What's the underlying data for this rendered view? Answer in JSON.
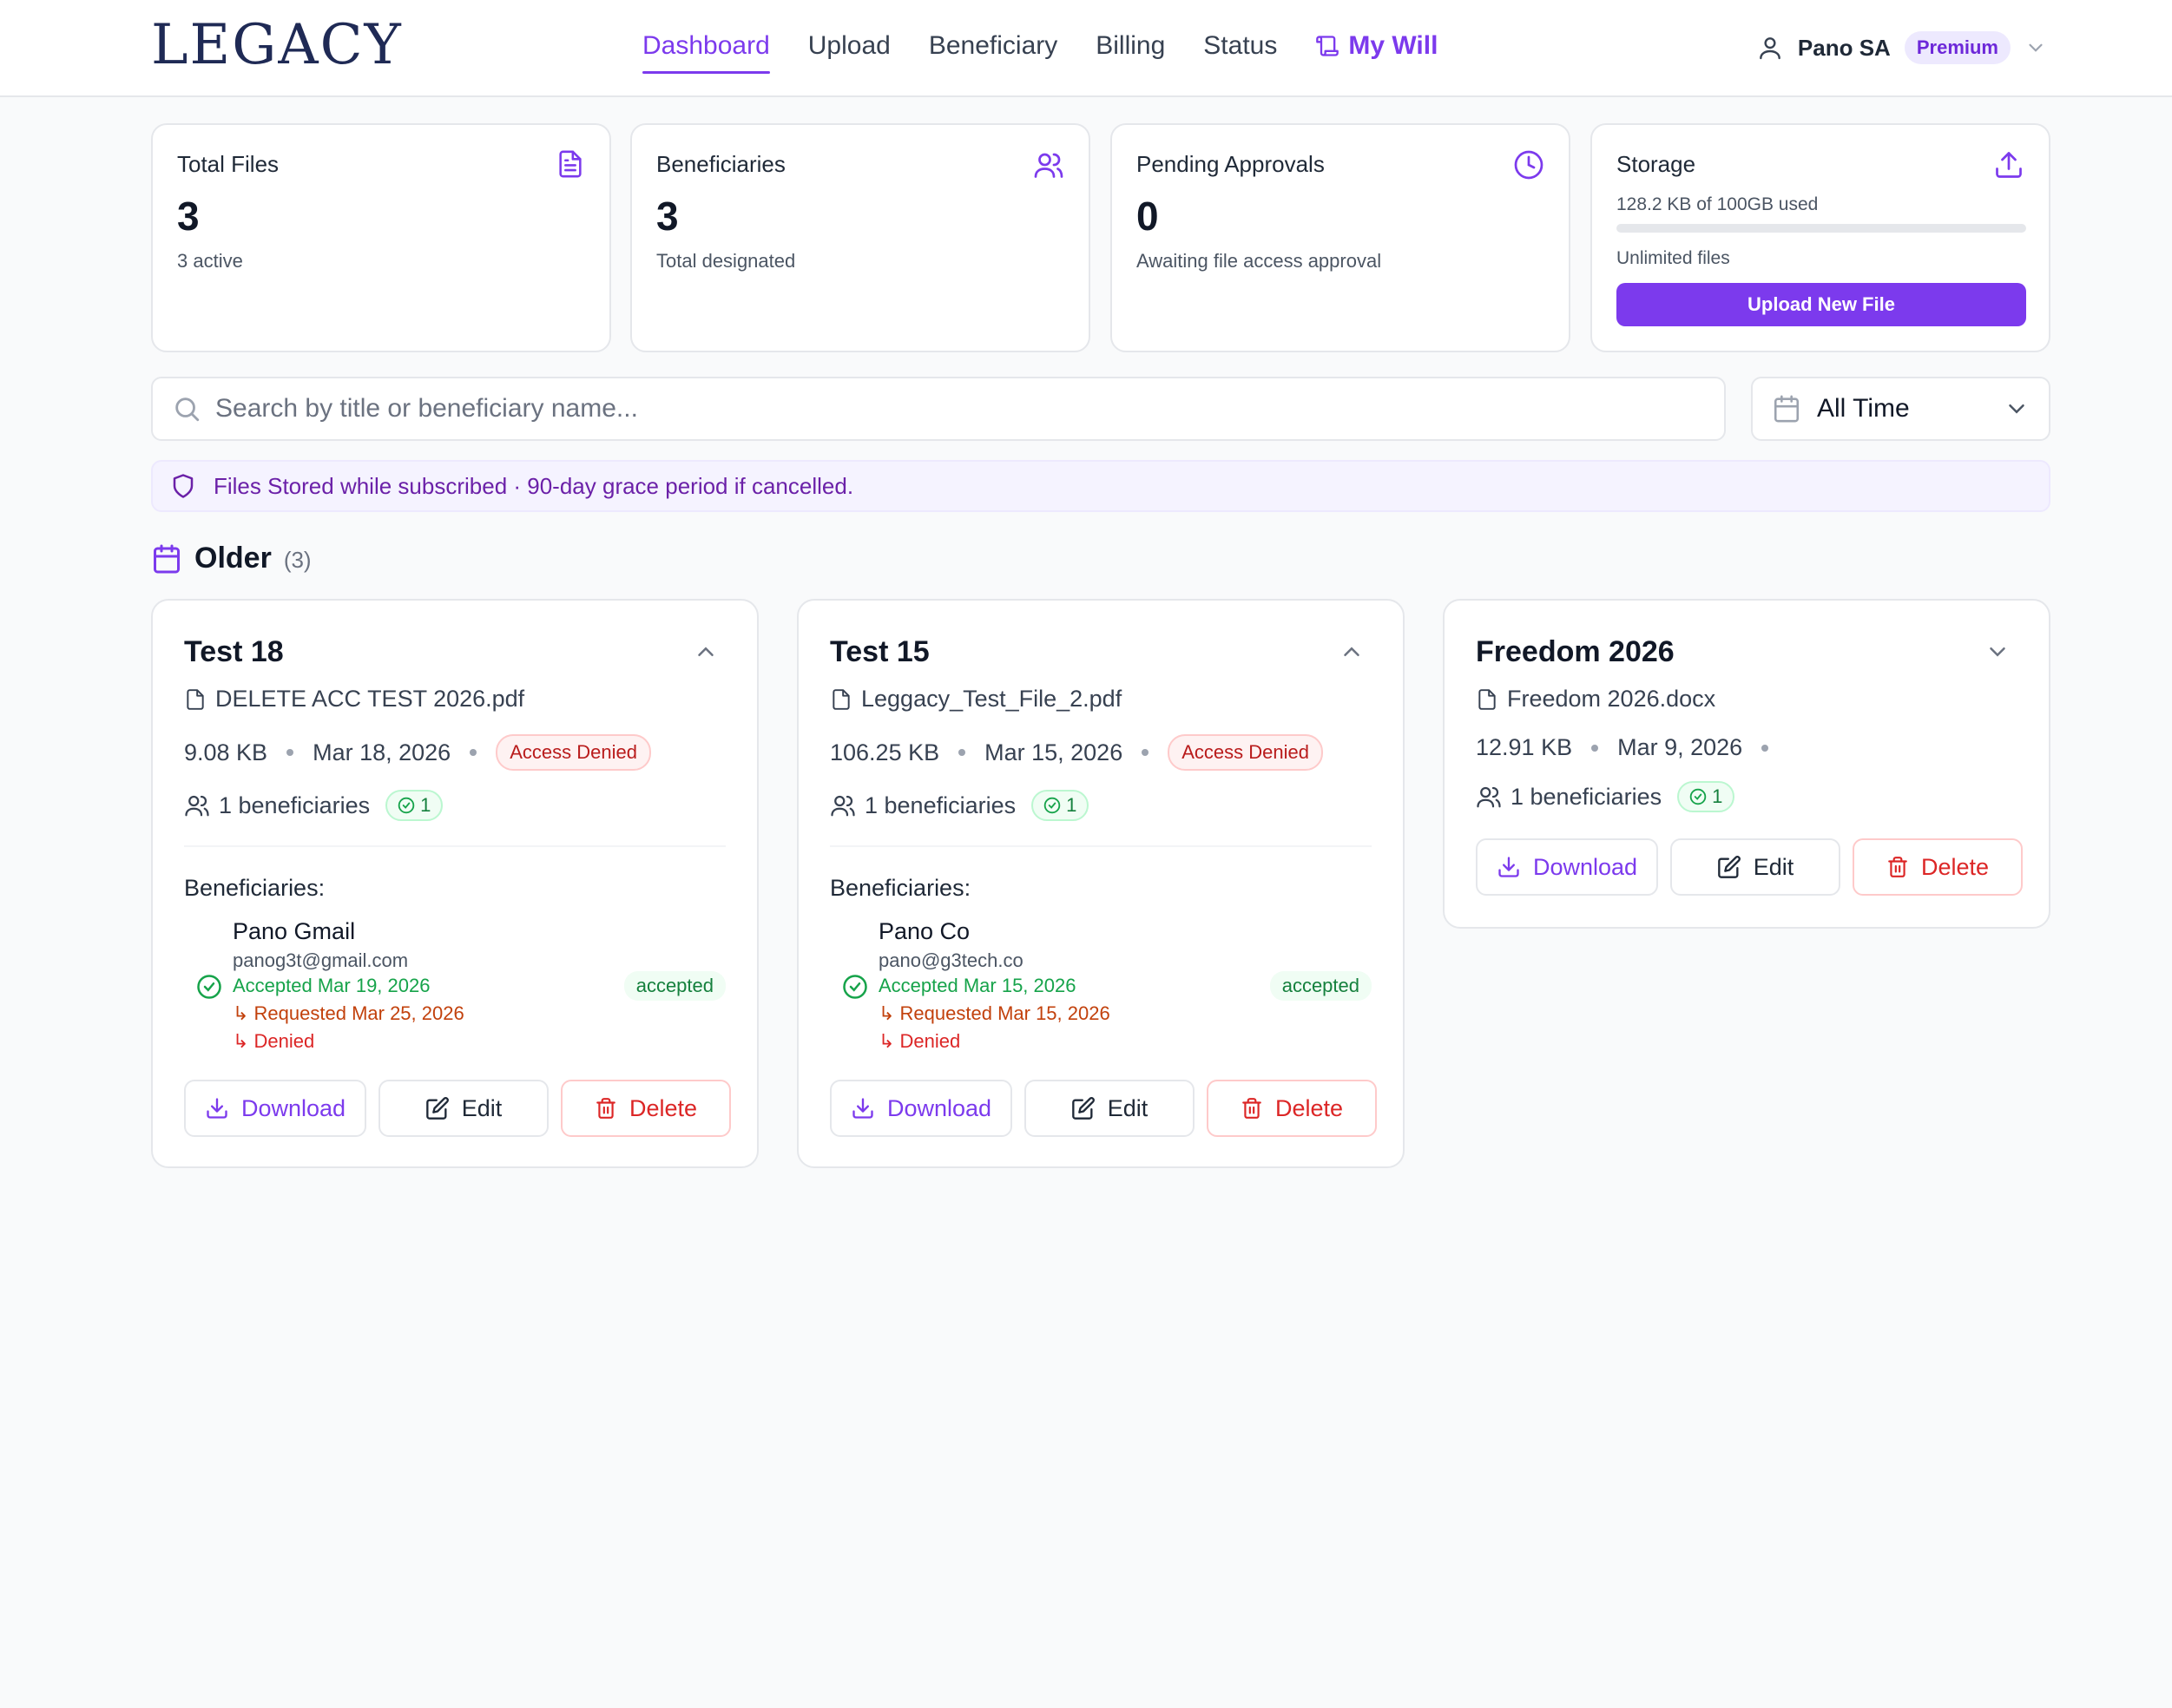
{
  "brand": {
    "logo": "LEGACY"
  },
  "nav": {
    "dashboard": "Dashboard",
    "upload": "Upload",
    "beneficiary": "Beneficiary",
    "billing": "Billing",
    "status": "Status",
    "my_will": "My Will"
  },
  "user": {
    "name": "Pano SA",
    "plan": "Premium"
  },
  "stats": {
    "total_files": {
      "title": "Total Files",
      "value": "3",
      "sub": "3 active"
    },
    "beneficiaries": {
      "title": "Beneficiaries",
      "value": "3",
      "sub": "Total designated"
    },
    "pending": {
      "title": "Pending Approvals",
      "value": "0",
      "sub": "Awaiting file access approval"
    },
    "storage": {
      "title": "Storage",
      "used": "128.2 KB of 100GB used",
      "used_fraction": 0.0,
      "files": "Unlimited files",
      "upload_button": "Upload New File"
    }
  },
  "search": {
    "placeholder": "Search by title or beneficiary name...",
    "value": ""
  },
  "filter": {
    "selected": "All Time"
  },
  "notice": {
    "text": "Files Stored while subscribed · 90-day grace period if cancelled."
  },
  "section": {
    "title": "Older",
    "count": "(3)"
  },
  "files": [
    {
      "title": "Test 18",
      "filename": "DELETE ACC TEST 2026.pdf",
      "size": "9.08 KB",
      "date": "Mar 18, 2026",
      "status": "Access Denied",
      "beneficiaries": "1 beneficiaries",
      "accepted_count": "1",
      "expanded": true,
      "beneficiaries_label": "Beneficiaries:",
      "beneficiary": {
        "name": "Pano Gmail",
        "email": "panog3t@gmail.com",
        "accepted": "Accepted Mar 19, 2026",
        "requested": "↳ Requested Mar 25, 2026",
        "denied": "↳ Denied",
        "status": "accepted"
      },
      "actions": {
        "download": "Download",
        "edit": "Edit",
        "delete": "Delete"
      }
    },
    {
      "title": "Test 15",
      "filename": "Leggacy_Test_File_2.pdf",
      "size": "106.25 KB",
      "date": "Mar 15, 2026",
      "status": "Access Denied",
      "beneficiaries": "1 beneficiaries",
      "accepted_count": "1",
      "expanded": true,
      "beneficiaries_label": "Beneficiaries:",
      "beneficiary": {
        "name": "Pano Co",
        "email": "pano@g3tech.co",
        "accepted": "Accepted Mar 15, 2026",
        "requested": "↳ Requested Mar 15, 2026",
        "denied": "↳ Denied",
        "status": "accepted"
      },
      "actions": {
        "download": "Download",
        "edit": "Edit",
        "delete": "Delete"
      }
    },
    {
      "title": "Freedom 2026",
      "filename": "Freedom 2026.docx",
      "size": "12.91 KB",
      "date": "Mar 9, 2026",
      "beneficiaries": "1 beneficiaries",
      "accepted_count": "1",
      "expanded": false,
      "actions": {
        "download": "Download",
        "edit": "Edit",
        "delete": "Delete"
      }
    }
  ],
  "colors": {
    "accent": "#7c3aed",
    "danger": "#dc2626",
    "success": "#16a34a",
    "warning": "#c2410c"
  },
  "icons": [
    "file-text-icon",
    "users-icon",
    "clock-icon",
    "upload-icon",
    "search-icon",
    "calendar-icon",
    "shield-icon",
    "chevron-up-icon",
    "chevron-down-icon",
    "file-icon",
    "check-circle-icon",
    "download-icon",
    "edit-icon",
    "trash-icon",
    "user-icon",
    "scroll-icon"
  ]
}
